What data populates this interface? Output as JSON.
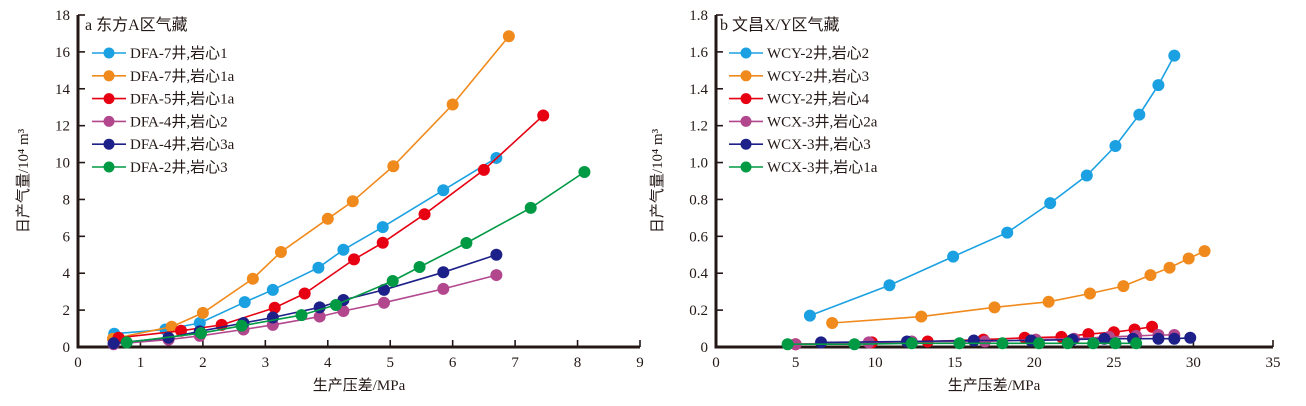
{
  "chart_data": [
    {
      "type": "line",
      "title": "a 东方A区气藏",
      "xlabel": "生产压差/MPa",
      "ylabel": "日产气量/10⁴ m³",
      "xlim": [
        0,
        9
      ],
      "ylim": [
        0,
        18
      ],
      "xticks": [
        "0",
        "1",
        "2",
        "3",
        "4",
        "5",
        "6",
        "7",
        "8",
        "9"
      ],
      "yticks": [
        "0",
        "2",
        "4",
        "6",
        "8",
        "10",
        "12",
        "14",
        "16",
        "18"
      ],
      "grid": false,
      "legend_position": "top-left",
      "series": [
        {
          "name": "DFA-7井,岩心1",
          "color": "#1ba1e2",
          "x": [
            0.58,
            1.4,
            1.95,
            2.67,
            3.12,
            3.85,
            4.25,
            4.88,
            5.85,
            6.7
          ],
          "y": [
            0.72,
            0.95,
            1.3,
            2.43,
            3.1,
            4.3,
            5.27,
            6.5,
            8.5,
            10.25
          ]
        },
        {
          "name": "DFA-7井,岩心1a",
          "color": "#f08a1c",
          "x": [
            0.56,
            1.5,
            2.0,
            2.8,
            3.25,
            4.0,
            4.4,
            5.05,
            6.0,
            6.9
          ],
          "y": [
            0.45,
            1.1,
            1.85,
            3.7,
            5.15,
            6.95,
            7.9,
            9.8,
            13.15,
            16.85
          ]
        },
        {
          "name": "DFA-5井,岩心1a",
          "color": "#e60012",
          "x": [
            0.65,
            1.65,
            2.3,
            3.15,
            3.63,
            4.42,
            4.88,
            5.55,
            6.5,
            7.45
          ],
          "y": [
            0.5,
            0.88,
            1.2,
            2.13,
            2.9,
            4.75,
            5.65,
            7.2,
            9.6,
            12.55
          ]
        },
        {
          "name": "DFA-4井,岩心2",
          "color": "#b2478e",
          "x": [
            0.57,
            1.45,
            1.95,
            2.65,
            3.12,
            3.87,
            4.25,
            4.9,
            5.85,
            6.7
          ],
          "y": [
            0.15,
            0.4,
            0.6,
            0.95,
            1.2,
            1.65,
            1.95,
            2.4,
            3.15,
            3.9
          ]
        },
        {
          "name": "DFA-4井,岩心3a",
          "color": "#1d2088",
          "x": [
            0.57,
            1.45,
            1.95,
            2.65,
            3.12,
            3.87,
            4.25,
            4.9,
            5.85,
            6.7
          ],
          "y": [
            0.2,
            0.5,
            0.85,
            1.3,
            1.6,
            2.15,
            2.55,
            3.1,
            4.05,
            5.0
          ]
        },
        {
          "name": "DFA-2井,岩心3",
          "color": "#009944",
          "x": [
            0.78,
            1.97,
            2.62,
            3.58,
            4.13,
            5.04,
            5.47,
            6.22,
            7.25,
            8.11
          ],
          "y": [
            0.25,
            0.75,
            1.15,
            1.73,
            2.28,
            3.58,
            4.34,
            5.64,
            7.54,
            9.49
          ]
        }
      ]
    },
    {
      "type": "line",
      "title": "b 文昌X/Y区气藏",
      "xlabel": "生产压差/MPa",
      "ylabel": "日产气量/10⁴ m³",
      "xlim": [
        0,
        35
      ],
      "ylim": [
        0,
        1.8
      ],
      "xticks": [
        "0",
        "5",
        "10",
        "15",
        "20",
        "25",
        "30",
        "35"
      ],
      "yticks": [
        "0",
        "0.2",
        "0.4",
        "0.6",
        "0.8",
        "1.0",
        "1.2",
        "1.4",
        "1.6",
        "1.8"
      ],
      "grid": false,
      "legend_position": "top-left",
      "series": [
        {
          "name": "WCY-2井,岩心2",
          "color": "#1ba1e2",
          "x": [
            5.9,
            10.9,
            14.9,
            18.3,
            21.0,
            23.3,
            25.1,
            26.6,
            27.8,
            28.8
          ],
          "y": [
            0.17,
            0.335,
            0.49,
            0.62,
            0.78,
            0.93,
            1.09,
            1.26,
            1.42,
            1.58
          ]
        },
        {
          "name": "WCY-2井,岩心3",
          "color": "#f08a1c",
          "x": [
            7.3,
            12.9,
            17.5,
            20.9,
            23.5,
            25.6,
            27.3,
            28.5,
            29.7,
            30.7
          ],
          "y": [
            0.13,
            0.165,
            0.215,
            0.245,
            0.29,
            0.33,
            0.39,
            0.43,
            0.48,
            0.52
          ]
        },
        {
          "name": "WCY-2井,岩心4",
          "color": "#e60012",
          "x": [
            5.0,
            9.8,
            13.3,
            16.8,
            19.4,
            21.7,
            23.4,
            25.0,
            26.3,
            27.4
          ],
          "y": [
            0.015,
            0.025,
            0.03,
            0.04,
            0.05,
            0.055,
            0.07,
            0.08,
            0.095,
            0.11
          ]
        },
        {
          "name": "WCX-3井,岩心2a",
          "color": "#b2478e",
          "x": [
            5.0,
            9.6,
            12.3,
            16.9,
            20.1,
            22.5,
            24.7,
            26.4,
            27.8,
            28.8
          ],
          "y": [
            0.015,
            0.025,
            0.03,
            0.03,
            0.04,
            0.045,
            0.055,
            0.06,
            0.065,
            0.065
          ]
        },
        {
          "name": "WCX-3井,岩心3",
          "color": "#1d2088",
          "x": [
            6.6,
            12.0,
            16.2,
            19.8,
            22.4,
            24.4,
            26.2,
            27.8,
            28.8,
            29.8
          ],
          "y": [
            0.025,
            0.03,
            0.035,
            0.035,
            0.04,
            0.045,
            0.045,
            0.045,
            0.045,
            0.05
          ]
        },
        {
          "name": "WCX-3井,岩心1a",
          "color": "#009944",
          "x": [
            4.5,
            8.7,
            12.3,
            15.3,
            18.0,
            20.3,
            22.1,
            23.7,
            25.1,
            26.4
          ],
          "y": [
            0.015,
            0.015,
            0.02,
            0.02,
            0.02,
            0.02,
            0.02,
            0.02,
            0.02,
            0.02
          ]
        }
      ]
    }
  ]
}
